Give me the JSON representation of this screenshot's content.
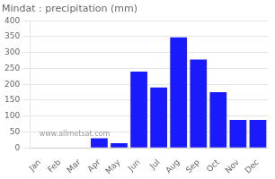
{
  "chart_data": {
    "type": "bar",
    "title": "Mindat : precipitation (mm)",
    "categories": [
      "Jan",
      "Feb",
      "Mar",
      "Apr",
      "May",
      "Jun",
      "Jul",
      "Aug",
      "Sep",
      "Oct",
      "Nov",
      "Dec"
    ],
    "values": [
      0,
      0,
      0,
      30,
      15,
      240,
      190,
      348,
      278,
      175,
      88,
      88
    ],
    "color": "#1a1aff",
    "ylim": [
      0,
      400
    ],
    "yticks": [
      0,
      50,
      100,
      150,
      200,
      250,
      300,
      350,
      400
    ],
    "grid": true,
    "annotations": [
      "www.allmetsat.com"
    ]
  }
}
